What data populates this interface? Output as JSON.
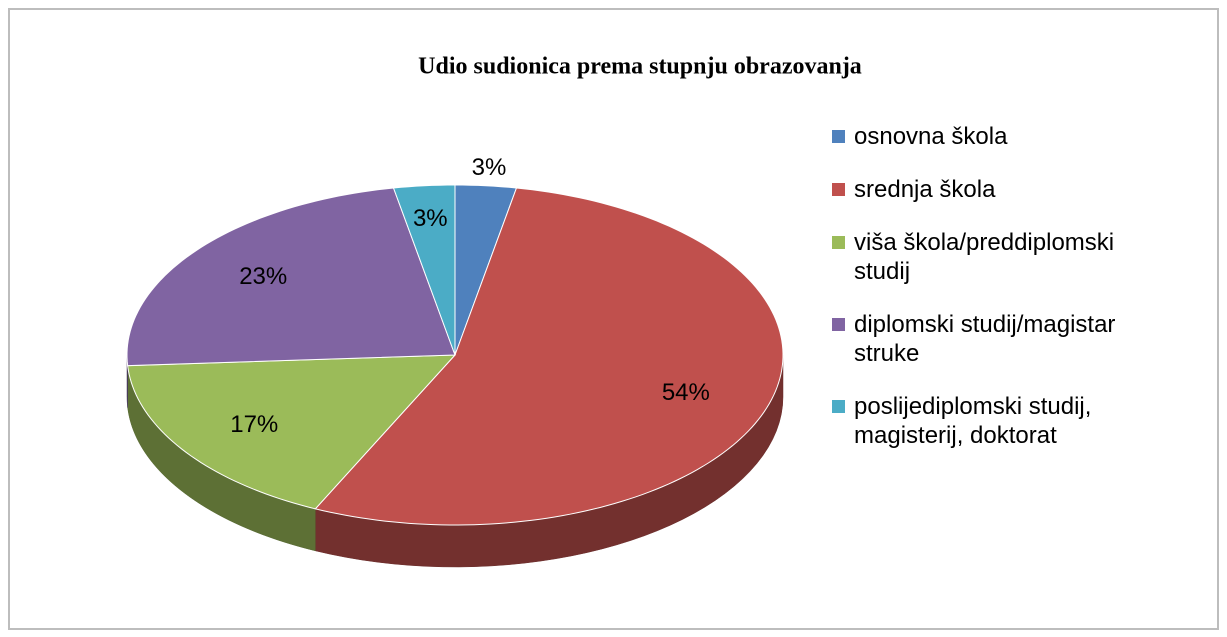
{
  "chart_data": {
    "type": "pie",
    "title": "Udio sudionica prema stupnju  obrazovanja",
    "categories": [
      "osnovna škola",
      "srednja škola",
      "viša škola/preddiplomski studij",
      "diplomski studij/magistar struke",
      "poslijediplomski studij, magisterij, doktorat"
    ],
    "values": [
      3,
      54,
      17,
      23,
      3
    ],
    "value_labels": [
      "3%",
      "54%",
      "17%",
      "23%",
      "3%"
    ],
    "colors": [
      "#4f81bd",
      "#c0504d",
      "#9bbb59",
      "#8064a2",
      "#4bacc6"
    ],
    "legend": "right"
  }
}
